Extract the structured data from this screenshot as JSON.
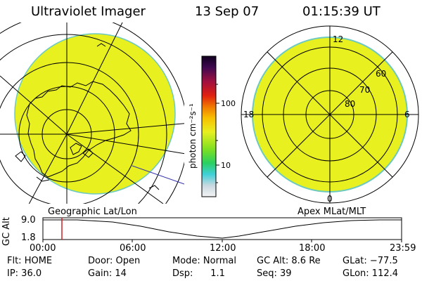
{
  "header": {
    "instrument": "Ultraviolet Imager",
    "date": "13 Sep 07",
    "time": "01:15:39 UT"
  },
  "colorbar": {
    "unit_label": "photon cm⁻²s⁻¹",
    "ticks": [
      "100",
      "10"
    ]
  },
  "geo_map": {
    "label": "Geographic Lat/Lon"
  },
  "apex_map": {
    "label": "Apex  MLat/MLT",
    "mlt_labels": [
      "12",
      "18",
      "6",
      "0"
    ],
    "mlat_labels": [
      "60",
      "70",
      "80"
    ]
  },
  "altitude_panel": {
    "ylabel": "GC Alt",
    "yticks": [
      "9.0",
      "1.8"
    ],
    "xticks": [
      "00:00",
      "06:00",
      "12:00",
      "18:00",
      "23:59"
    ]
  },
  "status": {
    "row1": {
      "flt": "Flt: HOME",
      "door": "Door: Open",
      "mode": "Mode: Normal",
      "gcalt": "GC Alt: 8.6 Re",
      "glat": "GLat: −77.5"
    },
    "row2": {
      "ip": "IP: 36.0",
      "gain": "Gain: 14",
      "dsp": "Dsp:      1.1",
      "seq": "Seq: 39",
      "glon": "GLon: 112.4"
    }
  },
  "colors": {
    "fill": "#e8f020",
    "edge": "#6cc9c0",
    "cursor": "#cc2222",
    "orbit_line": "#3333aa"
  }
}
